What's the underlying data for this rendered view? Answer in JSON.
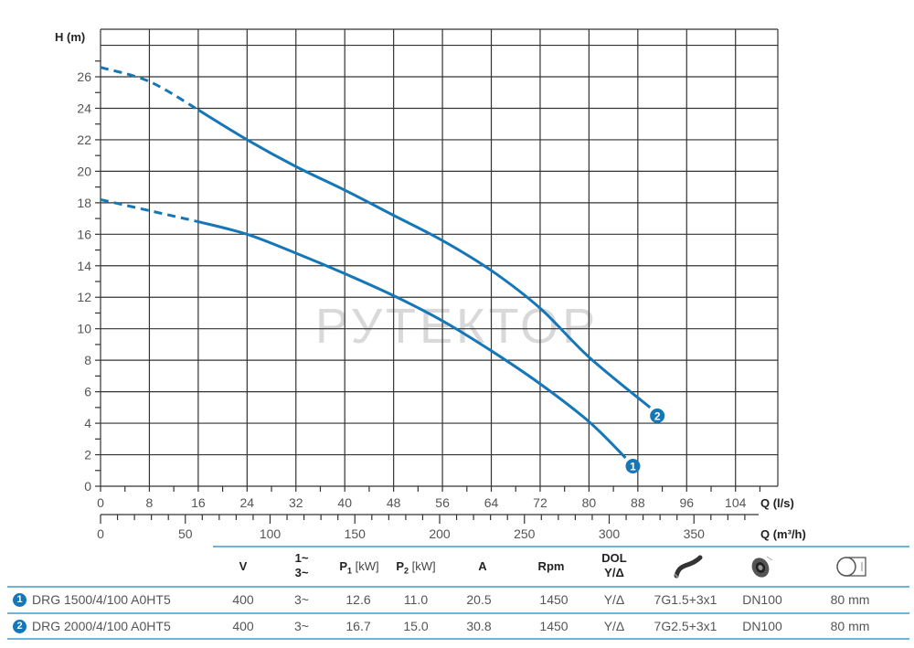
{
  "chart_data": {
    "type": "line",
    "title": "",
    "xlabel": "Q (l/s)",
    "xlabel_secondary": "Q (m³/h)",
    "ylabel": "H (m)",
    "xlim": [
      0,
      110
    ],
    "ylim": [
      0,
      29
    ],
    "x_ticks": [
      0,
      8,
      16,
      24,
      32,
      40,
      48,
      56,
      64,
      72,
      80,
      88,
      96,
      104
    ],
    "x_secondary_ticks": [
      0,
      50,
      100,
      150,
      200,
      250,
      300,
      350
    ],
    "y_ticks": [
      0,
      2,
      4,
      6,
      8,
      10,
      12,
      14,
      16,
      18,
      20,
      22,
      24,
      26
    ],
    "grid": true,
    "watermark": "РУТЕКТОР",
    "series": [
      {
        "name": "1",
        "model": "DRG 1500/4/100 A0HT5",
        "dashed_until_x": 16,
        "x": [
          0,
          8,
          16,
          24,
          32,
          40,
          48,
          56,
          64,
          72,
          80,
          86
        ],
        "y": [
          18.2,
          17.5,
          16.8,
          16.0,
          14.8,
          13.5,
          12.1,
          10.5,
          8.6,
          6.5,
          4.1,
          1.8
        ]
      },
      {
        "name": "2",
        "model": "DRG 2000/4/100 A0HT5",
        "dashed_until_x": 16,
        "x": [
          0,
          8,
          16,
          24,
          32,
          40,
          48,
          56,
          64,
          72,
          80,
          90
        ],
        "y": [
          26.6,
          25.7,
          23.9,
          22.0,
          20.3,
          18.8,
          17.2,
          15.6,
          13.7,
          11.3,
          8.2,
          5.0
        ]
      }
    ]
  },
  "colors": {
    "curve": "#1677b8",
    "grid": "#333333",
    "table_line": "#6fb3d9",
    "watermark": "#d9d9d9"
  },
  "table": {
    "headers": {
      "v": "V",
      "phase_1": "1~",
      "phase_3": "3~",
      "p1": "P",
      "p1_sub": "1",
      "p1_unit": " [kW]",
      "p2": "P",
      "p2_sub": "2",
      "p2_unit": " [kW]",
      "a": "A",
      "rpm": "Rpm",
      "start_1": "DOL",
      "start_2": "Y/Δ",
      "cable_icon": "cable-icon",
      "outlet_icon": "outlet-flange-icon",
      "passage_icon": "solid-passage-icon"
    },
    "rows": [
      {
        "badge": "1",
        "model": "DRG 1500/4/100 A0HT5",
        "v": "400",
        "phase": "3~",
        "p1": "12.6",
        "p2": "11.0",
        "a": "20.5",
        "rpm": "1450",
        "start": "Y/Δ",
        "cable": "7G1.5+3x1",
        "outlet": "DN100",
        "passage": "80 mm"
      },
      {
        "badge": "2",
        "model": "DRG 2000/4/100 A0HT5",
        "v": "400",
        "phase": "3~",
        "p1": "16.7",
        "p2": "15.0",
        "a": "30.8",
        "rpm": "1450",
        "start": "Y/Δ",
        "cable": "7G2.5+3x1",
        "outlet": "DN100",
        "passage": "80 mm"
      }
    ]
  }
}
